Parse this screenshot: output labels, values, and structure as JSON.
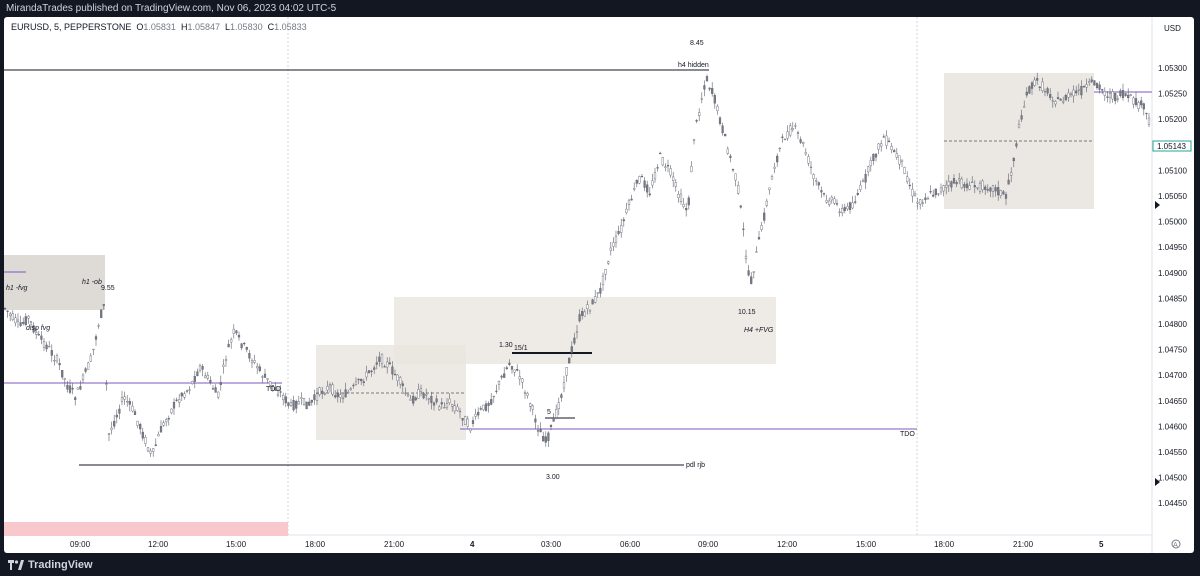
{
  "header": {
    "publisher_text": "MirandaTrades published on TradingView.com, Nov 06, 2023 04:02 UTC-5"
  },
  "legend": {
    "symbol": "EURUSD, 5, PEPPERSTONE",
    "open_label": "O",
    "open_value": "1.05831",
    "high_label": "H",
    "high_value": "1.05847",
    "low_label": "L",
    "low_value": "1.05830",
    "close_label": "C",
    "close_value": "1.05833"
  },
  "price_axis": {
    "currency": "USD",
    "ticks": [
      "1.05300",
      "1.05250",
      "1.05200",
      "1.05150",
      "1.05100",
      "1.05050",
      "1.05000",
      "1.04950",
      "1.04900",
      "1.04850",
      "1.04800",
      "1.04750",
      "1.04700",
      "1.04650",
      "1.04600",
      "1.04550",
      "1.04500",
      "1.04450"
    ],
    "last_price": "1.05143"
  },
  "time_axis": {
    "ticks": [
      "09:00",
      "12:00",
      "15:00",
      "18:00",
      "21:00",
      "4",
      "03:00",
      "06:00",
      "09:00",
      "12:00",
      "15:00",
      "18:00",
      "21:00",
      "5"
    ]
  },
  "annotations": {
    "h4_hidden": "h4 hidden",
    "val_845": "8.45",
    "h1_ob": "h1 -ob",
    "h1_fvg": "h1 -fvg",
    "val_955": "9.55",
    "disp_fvg": "disp fvg",
    "tdo_left": "TDO",
    "tdo_right": "TDO",
    "val_130": "1.30",
    "val_15_1": "15/1",
    "val_5": "5",
    "val_300": "3.00",
    "pdl_rjb": "pdl rjb",
    "val_1015": "10.15",
    "h4_fvg": "H4 +FVG"
  },
  "footer": {
    "brand": "TradingView"
  },
  "colors": {
    "background_dark": "#131722",
    "chart_bg": "#ffffff",
    "candle": "#787b86",
    "zone_fill": "#e8e4de",
    "purple_line": "#7e57c2",
    "black_line": "#131722",
    "red_zone": "#f8c8cc"
  }
}
